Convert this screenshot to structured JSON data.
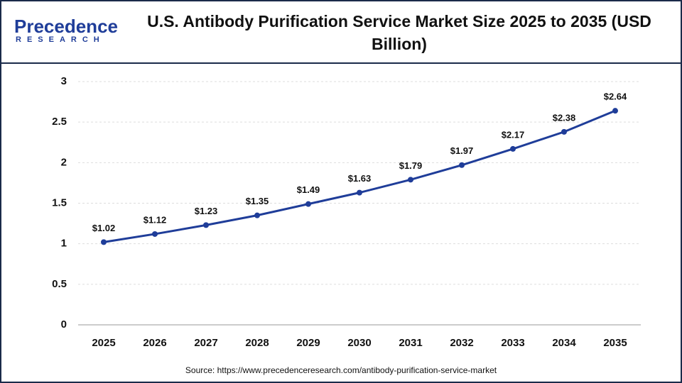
{
  "logo": {
    "name": "Precedence",
    "tagline": "RESEARCH"
  },
  "chart_data": {
    "type": "line",
    "title": "U.S. Antibody Purification Service Market Size 2025 to 2035 (USD Billion)",
    "categories": [
      "2025",
      "2026",
      "2027",
      "2028",
      "2029",
      "2030",
      "2031",
      "2032",
      "2033",
      "2034",
      "2035"
    ],
    "values": [
      1.02,
      1.12,
      1.23,
      1.35,
      1.49,
      1.63,
      1.79,
      1.97,
      2.17,
      2.38,
      2.64
    ],
    "value_labels": [
      "$1.02",
      "$1.12",
      "$1.23",
      "$1.35",
      "$1.49",
      "$1.63",
      "$1.79",
      "$1.97",
      "$2.17",
      "$2.38",
      "$2.64"
    ],
    "color": "#1f3d99",
    "ylim": [
      0,
      3
    ],
    "yticks": [
      0,
      0.5,
      1,
      1.5,
      2,
      2.5,
      3
    ],
    "grid": true,
    "source": "Source: https://www.precedenceresearch.com/antibody-purification-service-market"
  }
}
